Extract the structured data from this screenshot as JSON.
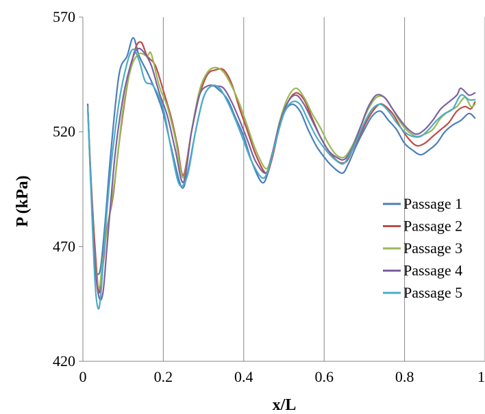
{
  "chart_data": {
    "type": "line",
    "title": "",
    "xlabel": "x/L",
    "ylabel": "P (kPa)",
    "xlim": [
      0,
      1
    ],
    "ylim": [
      420,
      570
    ],
    "x_ticks": [
      0,
      0.2,
      0.4,
      0.6,
      0.8,
      1
    ],
    "x_tick_labels": [
      "0",
      "0.2",
      "0.4",
      "0.6",
      "0.8",
      "1"
    ],
    "y_ticks": [
      420,
      470,
      520,
      570
    ],
    "y_tick_labels": [
      "420",
      "470",
      "520",
      "570"
    ],
    "grid": "vertical",
    "legend_position": "right",
    "series": [
      {
        "name": "Passage 1",
        "color": "#4a7ebb",
        "points": [
          [
            0.012,
            532
          ],
          [
            0.02,
            497
          ],
          [
            0.03,
            463
          ],
          [
            0.038,
            458
          ],
          [
            0.045,
            462
          ],
          [
            0.055,
            480
          ],
          [
            0.07,
            512
          ],
          [
            0.09,
            545
          ],
          [
            0.11,
            553
          ],
          [
            0.125,
            561
          ],
          [
            0.14,
            553
          ],
          [
            0.16,
            546
          ],
          [
            0.18,
            538
          ],
          [
            0.2,
            528
          ],
          [
            0.22,
            513
          ],
          [
            0.245,
            496
          ],
          [
            0.26,
            502
          ],
          [
            0.28,
            520
          ],
          [
            0.3,
            535
          ],
          [
            0.32,
            540
          ],
          [
            0.34,
            538
          ],
          [
            0.36,
            534
          ],
          [
            0.38,
            526
          ],
          [
            0.4,
            518
          ],
          [
            0.42,
            507
          ],
          [
            0.445,
            498
          ],
          [
            0.46,
            502
          ],
          [
            0.48,
            516
          ],
          [
            0.5,
            528
          ],
          [
            0.52,
            532
          ],
          [
            0.54,
            529
          ],
          [
            0.56,
            521
          ],
          [
            0.58,
            514
          ],
          [
            0.6,
            509
          ],
          [
            0.62,
            505
          ],
          [
            0.645,
            502
          ],
          [
            0.66,
            506
          ],
          [
            0.68,
            514
          ],
          [
            0.7,
            521
          ],
          [
            0.72,
            527
          ],
          [
            0.74,
            529
          ],
          [
            0.76,
            525
          ],
          [
            0.78,
            521
          ],
          [
            0.8,
            515
          ],
          [
            0.82,
            512
          ],
          [
            0.84,
            510
          ],
          [
            0.86,
            512
          ],
          [
            0.88,
            515
          ],
          [
            0.9,
            520
          ],
          [
            0.92,
            523
          ],
          [
            0.94,
            525
          ],
          [
            0.96,
            528
          ],
          [
            0.975,
            526
          ]
        ]
      },
      {
        "name": "Passage 2",
        "color": "#be4b48",
        "points": [
          [
            0.012,
            531
          ],
          [
            0.02,
            500
          ],
          [
            0.03,
            470
          ],
          [
            0.04,
            450
          ],
          [
            0.05,
            462
          ],
          [
            0.06,
            478
          ],
          [
            0.075,
            492
          ],
          [
            0.09,
            515
          ],
          [
            0.11,
            540
          ],
          [
            0.13,
            556
          ],
          [
            0.145,
            559
          ],
          [
            0.16,
            553
          ],
          [
            0.18,
            549
          ],
          [
            0.2,
            538
          ],
          [
            0.22,
            526
          ],
          [
            0.235,
            514
          ],
          [
            0.25,
            501
          ],
          [
            0.27,
            520
          ],
          [
            0.29,
            536
          ],
          [
            0.31,
            545
          ],
          [
            0.33,
            547
          ],
          [
            0.35,
            547
          ],
          [
            0.37,
            541
          ],
          [
            0.39,
            530
          ],
          [
            0.41,
            520
          ],
          [
            0.43,
            510
          ],
          [
            0.455,
            502
          ],
          [
            0.47,
            508
          ],
          [
            0.49,
            523
          ],
          [
            0.51,
            533
          ],
          [
            0.53,
            537
          ],
          [
            0.55,
            534
          ],
          [
            0.57,
            526
          ],
          [
            0.59,
            518
          ],
          [
            0.61,
            512
          ],
          [
            0.635,
            507
          ],
          [
            0.655,
            507
          ],
          [
            0.67,
            512
          ],
          [
            0.69,
            519
          ],
          [
            0.71,
            526
          ],
          [
            0.73,
            531
          ],
          [
            0.745,
            532
          ],
          [
            0.77,
            528
          ],
          [
            0.79,
            522
          ],
          [
            0.81,
            517
          ],
          [
            0.83,
            514
          ],
          [
            0.85,
            515
          ],
          [
            0.87,
            518
          ],
          [
            0.89,
            521
          ],
          [
            0.91,
            524
          ],
          [
            0.93,
            529
          ],
          [
            0.95,
            531
          ],
          [
            0.965,
            530
          ],
          [
            0.975,
            533
          ]
        ]
      },
      {
        "name": "Passage 3",
        "color": "#98b954",
        "points": [
          [
            0.012,
            530
          ],
          [
            0.02,
            498
          ],
          [
            0.03,
            465
          ],
          [
            0.04,
            452
          ],
          [
            0.05,
            465
          ],
          [
            0.06,
            477
          ],
          [
            0.08,
            500
          ],
          [
            0.1,
            530
          ],
          [
            0.12,
            548
          ],
          [
            0.14,
            554
          ],
          [
            0.16,
            553
          ],
          [
            0.17,
            554
          ],
          [
            0.19,
            540
          ],
          [
            0.21,
            531
          ],
          [
            0.23,
            517
          ],
          [
            0.25,
            500
          ],
          [
            0.27,
            520
          ],
          [
            0.29,
            538
          ],
          [
            0.31,
            546
          ],
          [
            0.33,
            548
          ],
          [
            0.35,
            546
          ],
          [
            0.37,
            540
          ],
          [
            0.39,
            532
          ],
          [
            0.41,
            522
          ],
          [
            0.43,
            512
          ],
          [
            0.455,
            504
          ],
          [
            0.47,
            510
          ],
          [
            0.49,
            525
          ],
          [
            0.51,
            535
          ],
          [
            0.53,
            539
          ],
          [
            0.55,
            535
          ],
          [
            0.57,
            528
          ],
          [
            0.59,
            522
          ],
          [
            0.61,
            515
          ],
          [
            0.63,
            510
          ],
          [
            0.65,
            509
          ],
          [
            0.67,
            514
          ],
          [
            0.69,
            522
          ],
          [
            0.71,
            530
          ],
          [
            0.73,
            535
          ],
          [
            0.75,
            535
          ],
          [
            0.77,
            530
          ],
          [
            0.79,
            524
          ],
          [
            0.81,
            520
          ],
          [
            0.83,
            518
          ],
          [
            0.85,
            519
          ],
          [
            0.87,
            521
          ],
          [
            0.89,
            526
          ],
          [
            0.91,
            529
          ],
          [
            0.93,
            531
          ],
          [
            0.95,
            535
          ],
          [
            0.965,
            531
          ],
          [
            0.975,
            532
          ]
        ]
      },
      {
        "name": "Passage 4",
        "color": "#7d60a0",
        "points": [
          [
            0.012,
            532
          ],
          [
            0.02,
            498
          ],
          [
            0.03,
            463
          ],
          [
            0.04,
            448
          ],
          [
            0.05,
            450
          ],
          [
            0.06,
            470
          ],
          [
            0.08,
            510
          ],
          [
            0.1,
            535
          ],
          [
            0.12,
            550
          ],
          [
            0.135,
            556
          ],
          [
            0.15,
            555
          ],
          [
            0.17,
            549
          ],
          [
            0.19,
            537
          ],
          [
            0.21,
            527
          ],
          [
            0.23,
            512
          ],
          [
            0.25,
            498
          ],
          [
            0.27,
            520
          ],
          [
            0.29,
            536
          ],
          [
            0.31,
            540
          ],
          [
            0.33,
            540
          ],
          [
            0.35,
            539
          ],
          [
            0.37,
            533
          ],
          [
            0.39,
            525
          ],
          [
            0.41,
            516
          ],
          [
            0.43,
            507
          ],
          [
            0.455,
            502
          ],
          [
            0.47,
            510
          ],
          [
            0.49,
            524
          ],
          [
            0.51,
            533
          ],
          [
            0.53,
            536
          ],
          [
            0.55,
            532
          ],
          [
            0.57,
            525
          ],
          [
            0.59,
            518
          ],
          [
            0.61,
            512
          ],
          [
            0.63,
            509
          ],
          [
            0.65,
            508
          ],
          [
            0.67,
            513
          ],
          [
            0.69,
            522
          ],
          [
            0.71,
            531
          ],
          [
            0.73,
            536
          ],
          [
            0.75,
            535
          ],
          [
            0.77,
            530
          ],
          [
            0.79,
            525
          ],
          [
            0.81,
            521
          ],
          [
            0.83,
            519
          ],
          [
            0.85,
            521
          ],
          [
            0.87,
            525
          ],
          [
            0.89,
            530
          ],
          [
            0.91,
            533
          ],
          [
            0.93,
            536
          ],
          [
            0.94,
            539
          ],
          [
            0.96,
            536
          ],
          [
            0.975,
            537
          ]
        ]
      },
      {
        "name": "Passage 5",
        "color": "#4bacc6",
        "points": [
          [
            0.012,
            531
          ],
          [
            0.02,
            495
          ],
          [
            0.03,
            455
          ],
          [
            0.038,
            443
          ],
          [
            0.045,
            450
          ],
          [
            0.055,
            475
          ],
          [
            0.07,
            505
          ],
          [
            0.09,
            533
          ],
          [
            0.11,
            550
          ],
          [
            0.125,
            556
          ],
          [
            0.14,
            551
          ],
          [
            0.155,
            542
          ],
          [
            0.175,
            540
          ],
          [
            0.2,
            530
          ],
          [
            0.22,
            512
          ],
          [
            0.24,
            497
          ],
          [
            0.26,
            501
          ],
          [
            0.28,
            520
          ],
          [
            0.3,
            535
          ],
          [
            0.32,
            540
          ],
          [
            0.34,
            539
          ],
          [
            0.36,
            533
          ],
          [
            0.38,
            525
          ],
          [
            0.4,
            516
          ],
          [
            0.42,
            507
          ],
          [
            0.445,
            500
          ],
          [
            0.46,
            503
          ],
          [
            0.48,
            516
          ],
          [
            0.5,
            528
          ],
          [
            0.52,
            533
          ],
          [
            0.54,
            532
          ],
          [
            0.56,
            525
          ],
          [
            0.58,
            518
          ],
          [
            0.6,
            513
          ],
          [
            0.62,
            509
          ],
          [
            0.645,
            506
          ],
          [
            0.66,
            509
          ],
          [
            0.68,
            516
          ],
          [
            0.7,
            524
          ],
          [
            0.72,
            530
          ],
          [
            0.74,
            532
          ],
          [
            0.76,
            529
          ],
          [
            0.78,
            524
          ],
          [
            0.8,
            520
          ],
          [
            0.82,
            518
          ],
          [
            0.84,
            518
          ],
          [
            0.86,
            521
          ],
          [
            0.88,
            525
          ],
          [
            0.9,
            528
          ],
          [
            0.92,
            530
          ],
          [
            0.94,
            536
          ],
          [
            0.96,
            534
          ],
          [
            0.975,
            534
          ]
        ]
      }
    ]
  }
}
